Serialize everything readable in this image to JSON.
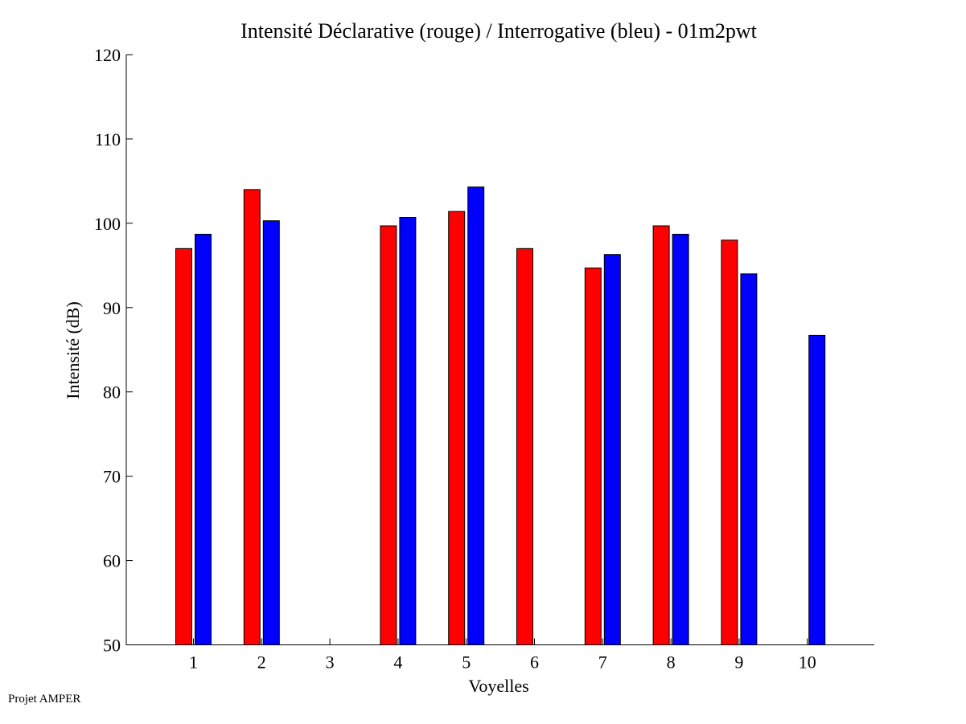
{
  "footer": {
    "credit": "Projet AMPER"
  },
  "chart_data": {
    "type": "bar",
    "title": "Intensité Déclarative (rouge) / Interrogative (bleu) - 01m2pwt",
    "xlabel": "Voyelles",
    "ylabel": "Intensité (dB)",
    "ylim": [
      50,
      120
    ],
    "yticks": [
      50,
      60,
      70,
      80,
      90,
      100,
      110,
      120
    ],
    "categories": [
      "1",
      "2",
      "3",
      "4",
      "5",
      "6",
      "7",
      "8",
      "9",
      "10"
    ],
    "grid": false,
    "legend": "none",
    "series": [
      {
        "color": "#ff0000",
        "values": [
          97.0,
          104.0,
          null,
          99.7,
          101.4,
          97.0,
          94.7,
          99.7,
          98.0,
          null
        ]
      },
      {
        "color": "#0000ff",
        "values": [
          98.7,
          100.3,
          null,
          100.7,
          104.3,
          null,
          96.3,
          98.7,
          94.0,
          86.7
        ]
      }
    ]
  }
}
